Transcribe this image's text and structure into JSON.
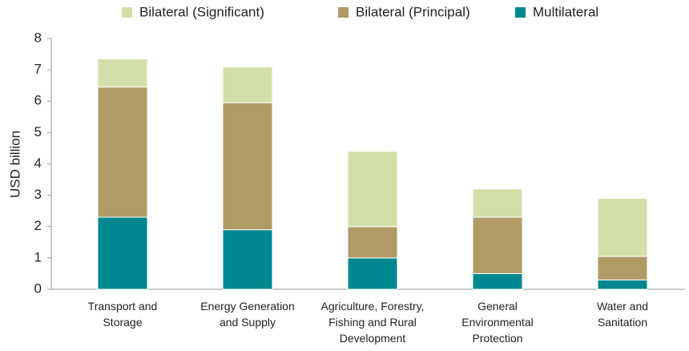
{
  "chart_data": {
    "type": "stacked_bar",
    "ylabel": "USD billion",
    "categories": [
      "Transport and Storage",
      "Energy Generation and Supply",
      "Agriculture, Forestry, Fishing and Rural Development",
      "General Environmental Protection",
      "Water and Sanitation"
    ],
    "series": [
      {
        "name": "Multilateral",
        "color": "#00878f",
        "values": [
          2.3,
          1.9,
          1.0,
          0.5,
          0.3
        ]
      },
      {
        "name": "Bilateral (Principal)",
        "color": "#b09a66",
        "values": [
          4.15,
          4.05,
          1.0,
          1.8,
          0.75
        ]
      },
      {
        "name": "Bilateral (Significant)",
        "color": "#d3dfa8",
        "values": [
          0.9,
          1.15,
          2.4,
          0.9,
          1.85
        ]
      }
    ],
    "ylim": [
      0,
      8
    ],
    "yticks": [
      0,
      1,
      2,
      3,
      4,
      5,
      6,
      7,
      8
    ],
    "grid": false
  }
}
